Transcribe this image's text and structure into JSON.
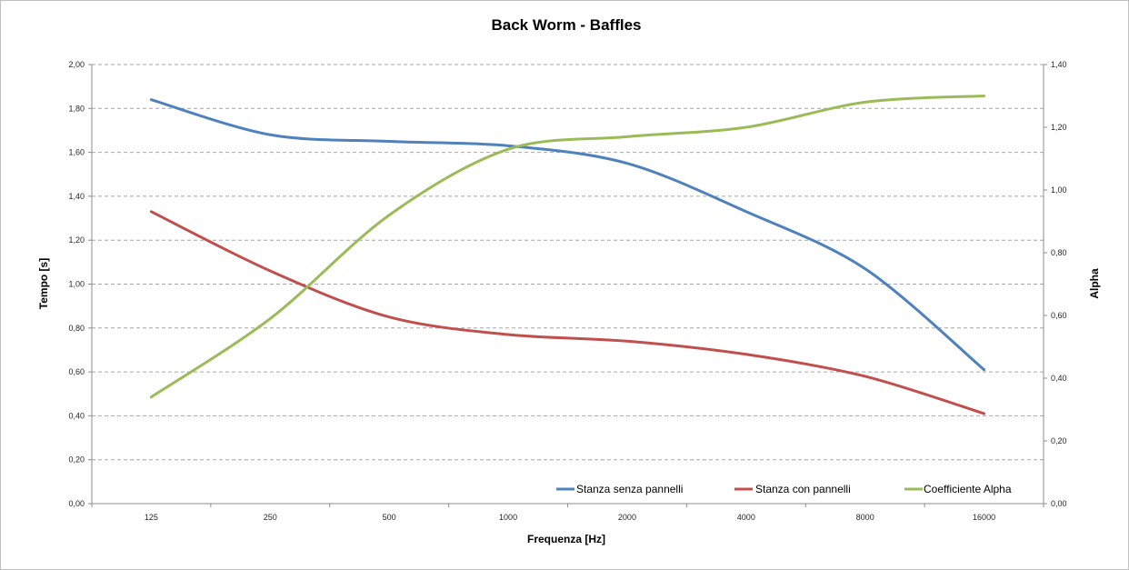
{
  "chart_data": {
    "type": "line",
    "title": "Back Worm - Baffles",
    "xlabel": "Frequenza [Hz]",
    "ylabel": "Tempo [s]",
    "y2label": "Alpha",
    "categories": [
      "125",
      "250",
      "500",
      "1000",
      "2000",
      "4000",
      "8000",
      "16000"
    ],
    "ylim": [
      0,
      2.0
    ],
    "y2lim": [
      0,
      1.4
    ],
    "yticks": [
      "0,00",
      "0,20",
      "0,40",
      "0,60",
      "0,80",
      "1,00",
      "1,20",
      "1,40",
      "1,60",
      "1,80",
      "2,00"
    ],
    "y2ticks": [
      "0,00",
      "0,20",
      "0,40",
      "0,60",
      "0,80",
      "1,00",
      "1,20",
      "1,40"
    ],
    "grid": true,
    "legend_position": "bottom-right",
    "smooth": true,
    "series": [
      {
        "name": "Stanza senza pannelli",
        "axis": "left",
        "color": "#4f81bd",
        "values": [
          1.84,
          1.68,
          1.65,
          1.63,
          1.55,
          1.33,
          1.07,
          0.61
        ]
      },
      {
        "name": "Stanza con pannelli",
        "axis": "left",
        "color": "#c0504d",
        "values": [
          1.33,
          1.06,
          0.85,
          0.77,
          0.74,
          0.68,
          0.58,
          0.41
        ]
      },
      {
        "name": "Coefficiente Alpha",
        "axis": "right",
        "color": "#9bbb59",
        "values": [
          0.34,
          0.59,
          0.92,
          1.13,
          1.17,
          1.2,
          1.28,
          1.3
        ]
      }
    ]
  }
}
